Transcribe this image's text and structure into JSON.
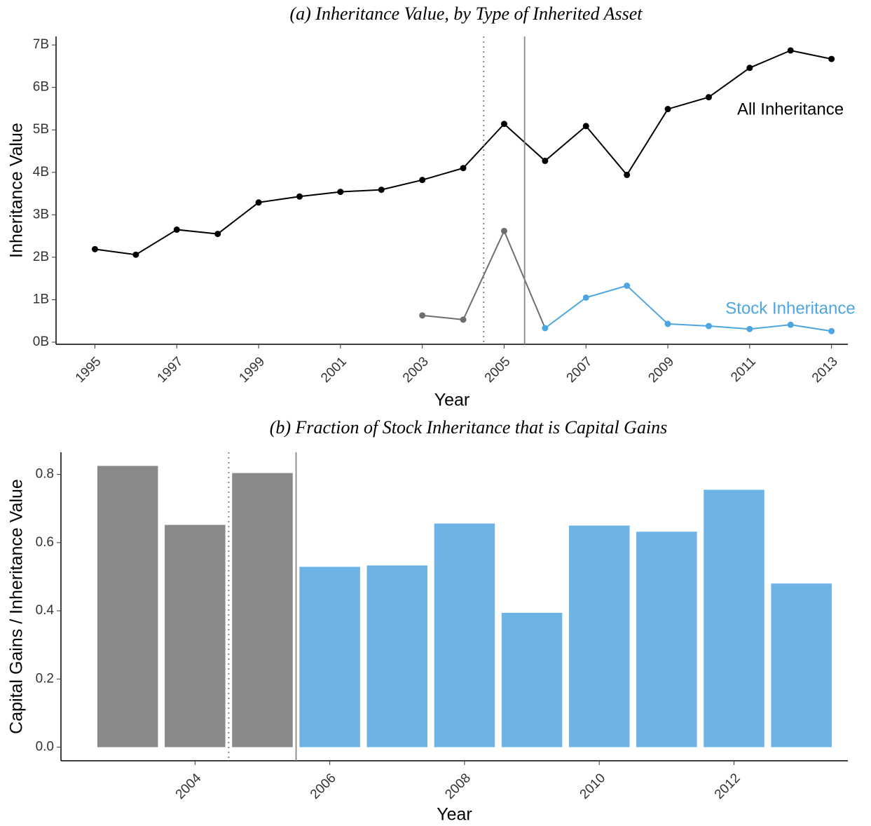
{
  "chart_data": [
    {
      "type": "line",
      "title": "(a) Inheritance Value, by Type of Inherited Asset",
      "x_label": "Year",
      "y_label": "Inheritance Value",
      "x": [
        1995,
        1996,
        1997,
        1998,
        1999,
        2000,
        2001,
        2002,
        2003,
        2004,
        2005,
        2006,
        2007,
        2008,
        2009,
        2010,
        2011,
        2012,
        2013
      ],
      "series": [
        {
          "name": "All Inheritance",
          "color": "#000000",
          "values": [
            2.19,
            2.06,
            2.65,
            2.55,
            3.29,
            3.43,
            3.54,
            3.59,
            3.82,
            4.1,
            5.14,
            4.27,
            5.09,
            3.94,
            5.49,
            5.77,
            6.46,
            6.87,
            6.67
          ]
        },
        {
          "name": "Stock Inheritance",
          "color": "#4da6e0",
          "values": [
            null,
            null,
            null,
            null,
            null,
            null,
            null,
            null,
            0.63,
            0.53,
            2.62,
            0.33,
            1.05,
            1.33,
            0.43,
            0.38,
            0.31,
            0.41,
            0.26
          ],
          "colors": [
            null,
            null,
            null,
            null,
            null,
            null,
            null,
            null,
            "#6e6e6e",
            "#6e6e6e",
            "#6e6e6e",
            "#4da6e0",
            "#4da6e0",
            "#4da6e0",
            "#4da6e0",
            "#4da6e0",
            "#4da6e0",
            "#4da6e0",
            "#4da6e0"
          ]
        }
      ],
      "xlim": [
        1994.05,
        2013.4
      ],
      "xticks": [
        1995,
        1997,
        1999,
        2001,
        2003,
        2005,
        2007,
        2009,
        2011,
        2013
      ],
      "ylim": [
        -0.05,
        7.2
      ],
      "yticks": [
        {
          "value": 0,
          "label": "0B"
        },
        {
          "value": 1,
          "label": "1B"
        },
        {
          "value": 2,
          "label": "2B"
        },
        {
          "value": 3,
          "label": "3B"
        },
        {
          "value": 4,
          "label": "4B"
        },
        {
          "value": 5,
          "label": "5B"
        },
        {
          "value": 6,
          "label": "6B"
        },
        {
          "value": 7,
          "label": "7B"
        }
      ],
      "vlines": [
        {
          "value": 2004.5,
          "style": "dotted"
        },
        {
          "value": 2005.5,
          "style": "solid"
        }
      ]
    },
    {
      "type": "bar",
      "title": "(b) Fraction of Stock Inheritance that is Capital Gains",
      "x_label": "Year",
      "y_label": "Capital Gains / Inheritance Value",
      "x": [
        2003,
        2004,
        2005,
        2006,
        2007,
        2008,
        2009,
        2010,
        2011,
        2012,
        2013
      ],
      "values": [
        0.825,
        0.652,
        0.804,
        0.529,
        0.533,
        0.656,
        0.394,
        0.65,
        0.632,
        0.755,
        0.48
      ],
      "colors": [
        "#8a8a8a",
        "#8a8a8a",
        "#8a8a8a",
        "#6db3e6",
        "#6db3e6",
        "#6db3e6",
        "#6db3e6",
        "#6db3e6",
        "#6db3e6",
        "#6db3e6",
        "#6db3e6"
      ],
      "xlim": [
        2002.01,
        2013.69
      ],
      "xticks": [
        2004,
        2006,
        2008,
        2010,
        2012
      ],
      "ylim": [
        -0.04,
        0.865
      ],
      "yticks": [
        {
          "value": 0,
          "label": "0.0"
        },
        0.2,
        0.4,
        0.6,
        0.8
      ],
      "vlines": [
        {
          "value": 2004.5,
          "style": "dotted"
        },
        {
          "value": 2005.5,
          "style": "solid"
        }
      ]
    }
  ]
}
